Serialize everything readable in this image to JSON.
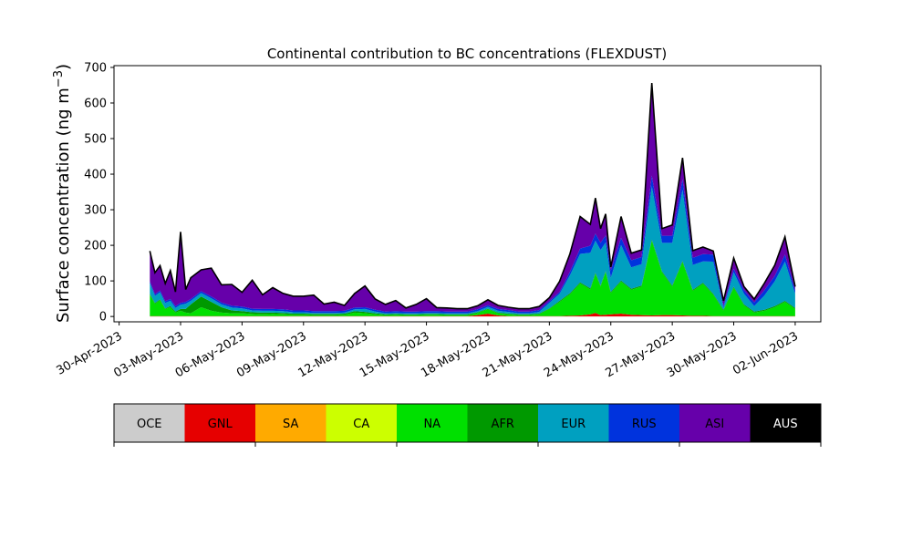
{
  "chart_data": {
    "type": "area",
    "title": "Continental contribution to BC concentrations (FLEXDUST)",
    "ylabel": "Surface concentration (ng m",
    "ylabel_superscript": "−3",
    "ylabel_suffix": ")",
    "xlabel": "",
    "ylim": [
      -15,
      705
    ],
    "xlim": [
      "2023-04-29T18:00",
      "2023-06-03T06:00"
    ],
    "grid": false,
    "yticks": [
      0,
      100,
      200,
      300,
      400,
      500,
      600,
      700
    ],
    "xticks": [
      "2023-04-30",
      "2023-05-03",
      "2023-05-06",
      "2023-05-09",
      "2023-05-12",
      "2023-05-15",
      "2023-05-18",
      "2023-05-21",
      "2023-05-24",
      "2023-05-27",
      "2023-05-30",
      "2023-06-02"
    ],
    "xtick_labels": [
      "30-Apr-2023",
      "03-May-2023",
      "06-May-2023",
      "09-May-2023",
      "12-May-2023",
      "15-May-2023",
      "18-May-2023",
      "21-May-2023",
      "24-May-2023",
      "27-May-2023",
      "30-May-2023",
      "02-Jun-2023"
    ],
    "x": [
      "2023-05-01T12:00",
      "2023-05-01T18:00",
      "2023-05-02T00:00",
      "2023-05-02T06:00",
      "2023-05-02T12:00",
      "2023-05-02T18:00",
      "2023-05-03T00:00",
      "2023-05-03T06:00",
      "2023-05-03T12:00",
      "2023-05-04T00:00",
      "2023-05-04T12:00",
      "2023-05-05T00:00",
      "2023-05-05T12:00",
      "2023-05-06T00:00",
      "2023-05-06T12:00",
      "2023-05-07T00:00",
      "2023-05-07T12:00",
      "2023-05-08T00:00",
      "2023-05-08T12:00",
      "2023-05-09T00:00",
      "2023-05-09T12:00",
      "2023-05-10T00:00",
      "2023-05-10T12:00",
      "2023-05-11T00:00",
      "2023-05-11T12:00",
      "2023-05-12T00:00",
      "2023-05-12T12:00",
      "2023-05-13T00:00",
      "2023-05-13T12:00",
      "2023-05-14T00:00",
      "2023-05-14T12:00",
      "2023-05-15T00:00",
      "2023-05-15T12:00",
      "2023-05-16T00:00",
      "2023-05-16T12:00",
      "2023-05-17T00:00",
      "2023-05-17T12:00",
      "2023-05-18T00:00",
      "2023-05-18T12:00",
      "2023-05-19T00:00",
      "2023-05-19T12:00",
      "2023-05-20T00:00",
      "2023-05-20T12:00",
      "2023-05-21T00:00",
      "2023-05-21T12:00",
      "2023-05-22T00:00",
      "2023-05-22T12:00",
      "2023-05-23T00:00",
      "2023-05-23T06:00",
      "2023-05-23T12:00",
      "2023-05-23T18:00",
      "2023-05-24T00:00",
      "2023-05-24T12:00",
      "2023-05-25T00:00",
      "2023-05-25T12:00",
      "2023-05-26T00:00",
      "2023-05-26T12:00",
      "2023-05-27T00:00",
      "2023-05-27T12:00",
      "2023-05-28T00:00",
      "2023-05-28T12:00",
      "2023-05-29T00:00",
      "2023-05-29T12:00",
      "2023-05-30T00:00",
      "2023-05-30T12:00",
      "2023-05-31T00:00",
      "2023-05-31T12:00",
      "2023-06-01T00:00",
      "2023-06-01T12:00",
      "2023-06-02T00:00"
    ],
    "series": [
      {
        "name": "OCE",
        "color": "#cccccc",
        "values": [
          0,
          0,
          0,
          0,
          0,
          0,
          0,
          0,
          0,
          0,
          0,
          0,
          0,
          0,
          0,
          0,
          0,
          0,
          0,
          0,
          0,
          0,
          0,
          0,
          0,
          0,
          0,
          0,
          0,
          0,
          0,
          0,
          0,
          0,
          0,
          0,
          0,
          0,
          0,
          0,
          0,
          0,
          0,
          0,
          0,
          0,
          0,
          0,
          0,
          0,
          0,
          0,
          0,
          0,
          0,
          0,
          0,
          0,
          0,
          0,
          0,
          0,
          0,
          0,
          0,
          0,
          0,
          0,
          0,
          0
        ]
      },
      {
        "name": "GNL",
        "color": "#e60000",
        "values": [
          1,
          1,
          1,
          1,
          1,
          1,
          1,
          1,
          1,
          1,
          1,
          1,
          1,
          1,
          1,
          1,
          1,
          1,
          1,
          1,
          1,
          1,
          1,
          1,
          1,
          1,
          1,
          1,
          1,
          1,
          1,
          1,
          1,
          1,
          1,
          1,
          4,
          8,
          3,
          1,
          1,
          1,
          1,
          1,
          1,
          2,
          3,
          6,
          10,
          4,
          5,
          6,
          8,
          5,
          4,
          3,
          4,
          4,
          3,
          2,
          2,
          1,
          1,
          1,
          1,
          1,
          1,
          1,
          1,
          1
        ]
      },
      {
        "name": "SA",
        "color": "#ffaa00",
        "values": [
          0,
          0,
          0,
          0,
          0,
          0,
          0,
          0,
          0,
          0,
          0,
          0,
          0,
          0,
          0,
          0,
          0,
          0,
          0,
          0,
          0,
          0,
          0,
          0,
          0,
          0,
          0,
          0,
          0,
          0,
          0,
          0,
          0,
          0,
          0,
          0,
          0,
          0,
          0,
          0,
          0,
          0,
          0,
          0,
          0,
          0,
          0,
          0,
          0,
          0,
          0,
          0,
          0,
          0,
          0,
          0,
          0,
          0,
          0,
          0,
          0,
          0,
          0,
          0,
          0,
          0,
          0,
          0,
          0,
          0
        ]
      },
      {
        "name": "CA",
        "color": "#ccff00",
        "values": [
          0,
          0,
          0,
          0,
          0,
          0,
          0,
          0,
          0,
          0,
          0,
          0,
          0,
          0,
          0,
          0,
          0,
          0,
          0,
          0,
          0,
          0,
          0,
          0,
          0,
          0,
          0,
          0,
          0,
          0,
          0,
          0,
          0,
          0,
          0,
          0,
          0,
          0,
          0,
          0,
          0,
          0,
          0,
          0,
          0,
          0,
          0,
          0,
          0,
          0,
          0,
          0,
          0,
          0,
          0,
          0,
          0,
          0,
          0,
          0,
          0,
          0,
          0,
          0,
          0,
          0,
          0,
          0,
          0,
          0
        ]
      },
      {
        "name": "NA",
        "color": "#00e000",
        "values": [
          60,
          35,
          45,
          20,
          25,
          10,
          15,
          10,
          8,
          25,
          15,
          10,
          8,
          8,
          6,
          5,
          6,
          5,
          4,
          4,
          3,
          3,
          3,
          4,
          10,
          8,
          5,
          3,
          4,
          3,
          3,
          4,
          4,
          3,
          3,
          3,
          6,
          12,
          6,
          5,
          3,
          3,
          5,
          20,
          40,
          60,
          90,
          70,
          110,
          80,
          120,
          60,
          90,
          70,
          80,
          210,
          120,
          80,
          150,
          70,
          90,
          60,
          15,
          80,
          30,
          10,
          15,
          25,
          40,
          20
        ]
      },
      {
        "name": "AFR",
        "color": "#009900",
        "values": [
          3,
          2,
          2,
          2,
          3,
          3,
          5,
          10,
          25,
          30,
          25,
          15,
          8,
          6,
          5,
          5,
          4,
          4,
          3,
          3,
          3,
          3,
          3,
          3,
          4,
          4,
          3,
          2,
          2,
          2,
          2,
          2,
          2,
          2,
          2,
          2,
          2,
          2,
          2,
          2,
          2,
          2,
          2,
          2,
          3,
          3,
          3,
          3,
          3,
          3,
          3,
          3,
          3,
          3,
          3,
          3,
          3,
          3,
          3,
          3,
          3,
          3,
          3,
          3,
          3,
          3,
          3,
          3,
          3,
          3
        ]
      },
      {
        "name": "EUR",
        "color": "#00a0c0",
        "values": [
          30,
          20,
          20,
          15,
          15,
          10,
          12,
          15,
          10,
          10,
          10,
          8,
          8,
          8,
          5,
          5,
          5,
          5,
          4,
          4,
          3,
          3,
          3,
          3,
          5,
          8,
          5,
          3,
          3,
          3,
          3,
          3,
          3,
          3,
          3,
          3,
          3,
          5,
          5,
          5,
          3,
          3,
          5,
          15,
          20,
          50,
          80,
          100,
          90,
          100,
          80,
          40,
          100,
          60,
          60,
          150,
          80,
          120,
          200,
          70,
          60,
          90,
          5,
          40,
          30,
          15,
          40,
          70,
          110,
          40
        ]
      },
      {
        "name": "RUS",
        "color": "#0033dd",
        "values": [
          5,
          5,
          5,
          5,
          5,
          5,
          5,
          5,
          5,
          5,
          5,
          5,
          5,
          5,
          5,
          5,
          5,
          5,
          5,
          5,
          5,
          5,
          5,
          5,
          5,
          5,
          5,
          5,
          5,
          5,
          5,
          5,
          5,
          5,
          5,
          5,
          5,
          5,
          5,
          5,
          5,
          5,
          5,
          5,
          5,
          10,
          15,
          20,
          20,
          20,
          20,
          20,
          20,
          20,
          20,
          30,
          20,
          20,
          30,
          20,
          20,
          20,
          5,
          10,
          10,
          10,
          15,
          15,
          20,
          10
        ]
      },
      {
        "name": "ASI",
        "color": "#6600aa",
        "values": [
          85,
          60,
          70,
          50,
          80,
          40,
          200,
          35,
          60,
          60,
          80,
          50,
          60,
          40,
          80,
          40,
          60,
          45,
          40,
          40,
          45,
          20,
          25,
          15,
          40,
          60,
          30,
          20,
          30,
          10,
          20,
          35,
          10,
          10,
          8,
          8,
          10,
          15,
          10,
          8,
          8,
          8,
          10,
          10,
          30,
          50,
          90,
          60,
          100,
          40,
          60,
          10,
          60,
          20,
          20,
          260,
          20,
          30,
          60,
          20,
          20,
          10,
          15,
          30,
          10,
          10,
          20,
          30,
          50,
          10
        ]
      },
      {
        "name": "AUS",
        "color": "#000000",
        "values": [
          0,
          0,
          0,
          0,
          0,
          0,
          0,
          0,
          0,
          0,
          0,
          0,
          0,
          0,
          0,
          0,
          0,
          0,
          0,
          0,
          0,
          0,
          0,
          0,
          0,
          0,
          0,
          0,
          0,
          0,
          0,
          0,
          0,
          0,
          0,
          0,
          0,
          0,
          0,
          0,
          0,
          0,
          0,
          0,
          0,
          0,
          0,
          0,
          0,
          0,
          0,
          0,
          0,
          0,
          0,
          0,
          0,
          0,
          0,
          0,
          0,
          0,
          0,
          0,
          0,
          0,
          0,
          0,
          0,
          0
        ]
      }
    ]
  }
}
